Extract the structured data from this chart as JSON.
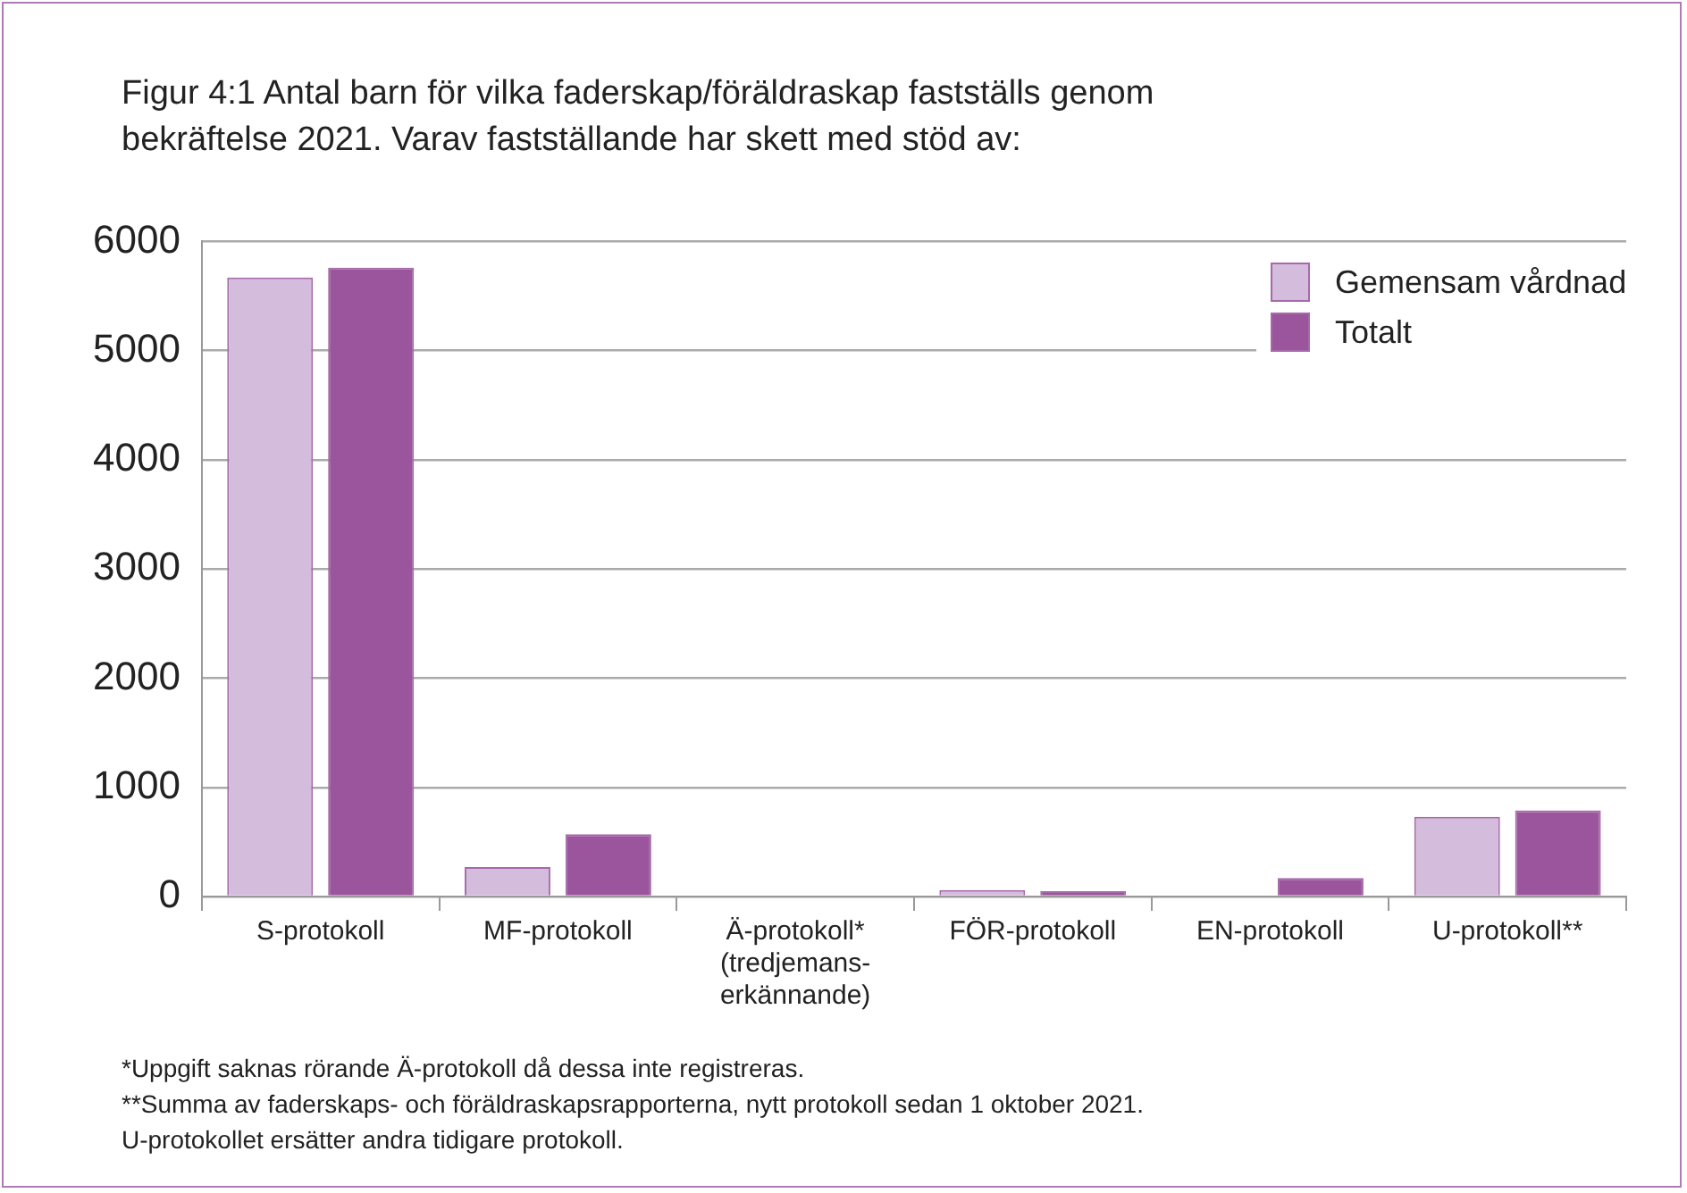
{
  "chart_data": {
    "type": "bar",
    "title": "Figur 4:1 Antal barn för vilka faderskap/föräldraskap fastställs genom bekräftelse 2021. Varav fastställande har skett med stöd av:",
    "categories": [
      "S-protokoll",
      "MF-protokoll",
      "Ä-protokoll*\n(tredjemans-\nerkännande)",
      "FÖR-protokoll",
      "EN-protokoll",
      "U-protokoll**"
    ],
    "series": [
      {
        "name": "Gemensam vårdnad",
        "color": "#d4bcdc",
        "values": [
          5670,
          270,
          null,
          60,
          0,
          730
        ]
      },
      {
        "name": "Totalt",
        "color": "#9b559c",
        "values": [
          5760,
          570,
          null,
          50,
          170,
          790
        ]
      }
    ],
    "ylim": [
      0,
      6000
    ],
    "yticks": [
      0,
      1000,
      2000,
      3000,
      4000,
      5000,
      6000
    ],
    "grid": "y",
    "legend": "top right",
    "annotations": [
      "*Uppgift saknas rörande Ä-protokoll då dessa inte registreras.",
      "**Summa av faderskaps- och föräldraskapsrapporterna, nytt protokoll sedan 1 oktober 2021.",
      "U-protokollet ersätter andra tidigare protokoll."
    ]
  }
}
